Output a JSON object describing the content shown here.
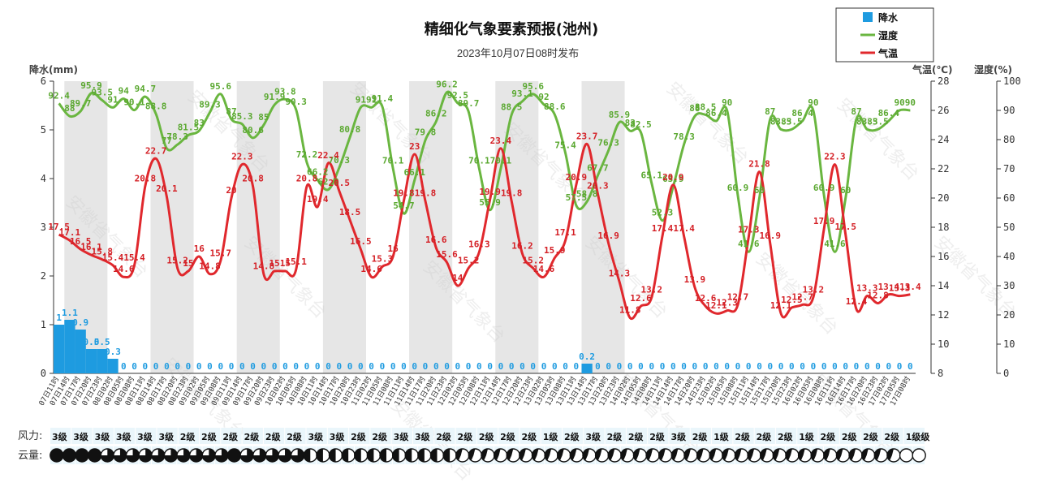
{
  "chart_data": {
    "type": "line",
    "title": "精细化气象要素预报(池州)",
    "subtitle": "2023年10月07日08时发布",
    "y_left_label": "降水(mm)",
    "y_right1_label": "气温(℃)",
    "y_right2_label": "湿度(%)",
    "y_left_range": [
      0,
      6
    ],
    "y_left_ticks": [
      "0",
      "1",
      "2",
      "3",
      "4",
      "5",
      "6"
    ],
    "y_temp_range": [
      8,
      28
    ],
    "y_temp_ticks": [
      "8",
      "10",
      "12",
      "14",
      "16",
      "18",
      "20",
      "22",
      "24",
      "26",
      "28"
    ],
    "y_hum_range": [
      0,
      100
    ],
    "y_hum_ticks": [
      "0",
      "10",
      "20",
      "30",
      "40",
      "50",
      "60",
      "70",
      "80",
      "90",
      "100"
    ],
    "legend": {
      "position": "top-right",
      "items": [
        {
          "name": "降水",
          "color": "#1e9be0",
          "shape": "square"
        },
        {
          "name": "湿度",
          "color": "#6ab640",
          "shape": "line"
        },
        {
          "name": "气温",
          "color": "#e0282d",
          "shape": "line"
        }
      ]
    },
    "categories": [
      "07日11时",
      "07日14时",
      "07日17时",
      "07日20时",
      "07日23时",
      "08日02时",
      "08日05时",
      "08日08时",
      "08日11时",
      "08日14时",
      "08日17时",
      "08日20时",
      "08日23时",
      "09日02时",
      "09日05时",
      "09日08时",
      "09日11时",
      "09日14时",
      "09日17时",
      "09日20时",
      "09日23时",
      "10日02时",
      "10日05时",
      "10日08时",
      "10日11时",
      "10日14时",
      "10日17时",
      "10日20时",
      "10日23时",
      "11日02时",
      "11日05时",
      "11日08时",
      "11日11时",
      "11日14时",
      "11日17时",
      "11日20时",
      "11日23时",
      "12日02时",
      "12日05时",
      "12日08时",
      "12日11时",
      "12日14时",
      "12日17时",
      "12日20时",
      "12日23时",
      "13日02时",
      "13日05时",
      "13日08时",
      "13日11时",
      "13日14时",
      "13日17时",
      "13日20时",
      "13日23时",
      "14日02时",
      "14日05时",
      "14日08时",
      "14日11时",
      "14日14时",
      "14日17时",
      "14日20时",
      "14日23时",
      "15日02时",
      "15日05时",
      "15日08时",
      "15日11时",
      "15日14时",
      "15日17时",
      "15日20时",
      "15日23时",
      "16日02时",
      "16日05时",
      "16日08时",
      "16日11时",
      "16日14时",
      "16日17时",
      "16日20时",
      "16日23时",
      "17日02时",
      "17日05时",
      "17日08时"
    ],
    "series": [
      {
        "name": "降水",
        "color": "#1e9be0",
        "type": "bar",
        "values": [
          1,
          1.1,
          0.9,
          0.5,
          0.5,
          0.3,
          0,
          0,
          0,
          0,
          0,
          0,
          0,
          0,
          0,
          0,
          0,
          0,
          0,
          0,
          0,
          0,
          0,
          0,
          0,
          0,
          0,
          0,
          0,
          0,
          0,
          0,
          0,
          0,
          0,
          0,
          0,
          0,
          0,
          0,
          0,
          0,
          0,
          0,
          0,
          0,
          0,
          0,
          0,
          0.2,
          0,
          0,
          0,
          0,
          0,
          0,
          0,
          0,
          0,
          0,
          0,
          0,
          0,
          0,
          0,
          0,
          0,
          0,
          0,
          0,
          0,
          0,
          0,
          0,
          0,
          0,
          0,
          0,
          0,
          0
        ]
      },
      {
        "name": "湿度",
        "color": "#6ab640",
        "type": "line",
        "values": [
          92.4,
          88,
          89.7,
          95.9,
          93.5,
          91,
          94,
          90.1,
          94.7,
          88.8,
          77,
          78.3,
          81.5,
          83,
          89.3,
          95.6,
          87,
          85.3,
          80.6,
          85,
          91.9,
          93.8,
          90.3,
          72.2,
          66.2,
          62.9,
          70.3,
          80.8,
          91,
          91,
          91.4,
          70.1,
          54.7,
          66.1,
          79.8,
          86.2,
          96.2,
          92.5,
          89.7,
          70.1,
          55.9,
          70.1,
          88.5,
          93.1,
          95.6,
          92,
          88.6,
          75.4,
          57.5,
          58.8,
          67.7,
          76.3,
          85.9,
          83,
          82.5,
          65.1,
          52.3,
          63.9,
          78.3,
          88,
          88.5,
          86.4,
          90,
          60.9,
          41.6,
          60,
          87,
          83.5,
          83.5,
          86.4,
          90,
          60.9,
          41.6,
          60,
          87,
          83.5,
          83.5,
          86.4,
          90,
          90
        ]
      },
      {
        "name": "气温",
        "color": "#e0282d",
        "type": "line",
        "values": [
          17.5,
          17.1,
          16.5,
          16.1,
          15.8,
          15.4,
          14.6,
          15.4,
          20.8,
          22.7,
          20.1,
          15.2,
          15.0,
          16,
          14.8,
          15.7,
          20,
          22.3,
          20.8,
          14.8,
          15,
          15,
          15.1,
          20.8,
          19.4,
          22.4,
          20.5,
          18.5,
          16.5,
          14.6,
          15.3,
          16,
          19.8,
          23,
          19.8,
          16.6,
          15.6,
          14,
          15.2,
          16.3,
          19.9,
          23.4,
          19.8,
          16.2,
          15.2,
          14.6,
          15.9,
          17.1,
          20.9,
          23.7,
          20.3,
          16.9,
          14.3,
          11.8,
          12.6,
          13.2,
          17.4,
          20.9,
          17.4,
          13.9,
          12.6,
          12.1,
          12.3,
          12.7,
          17.3,
          21.8,
          16.9,
          12.1,
          12.5,
          12.7,
          13.2,
          17.9,
          22.3,
          17.5,
          12.4,
          13.3,
          12.8,
          13.4,
          13.3,
          13.4
        ]
      }
    ],
    "grid": "alternating vertical bands",
    "watermark": "安徽省气象台"
  },
  "rows": {
    "wind_label": "风力:",
    "cloud_label": "云量:",
    "wind": [
      "3级",
      "3级",
      "3级",
      "3级",
      "3级",
      "3级",
      "2级",
      "2级",
      "2级",
      "2级",
      "2级",
      "2级",
      "3级",
      "3级",
      "2级",
      "2级",
      "3级",
      "3级",
      "2级",
      "2级",
      "2级",
      "2级",
      "2级",
      "1级",
      "2级",
      "3级",
      "2级",
      "2级",
      "2级",
      "3级",
      "2级",
      "1级",
      "2级",
      "2级",
      "2级",
      "1级",
      "2级",
      "2级",
      "2级",
      "2级",
      "1级级"
    ],
    "cloud": [
      4,
      4,
      4,
      4,
      3,
      3,
      3,
      3,
      3,
      3,
      3,
      3,
      3,
      3,
      4,
      3,
      3,
      3,
      3,
      3,
      2,
      2,
      2,
      2,
      2,
      2,
      2,
      2,
      2,
      2,
      2,
      2,
      1,
      1,
      1,
      1,
      1,
      1,
      1,
      1,
      1,
      1,
      1,
      1,
      1,
      1,
      1,
      1,
      1,
      1,
      1,
      1,
      1,
      1,
      1,
      1,
      1,
      1,
      1,
      1,
      1,
      1,
      1,
      1,
      1,
      1,
      1,
      0,
      0
    ]
  }
}
